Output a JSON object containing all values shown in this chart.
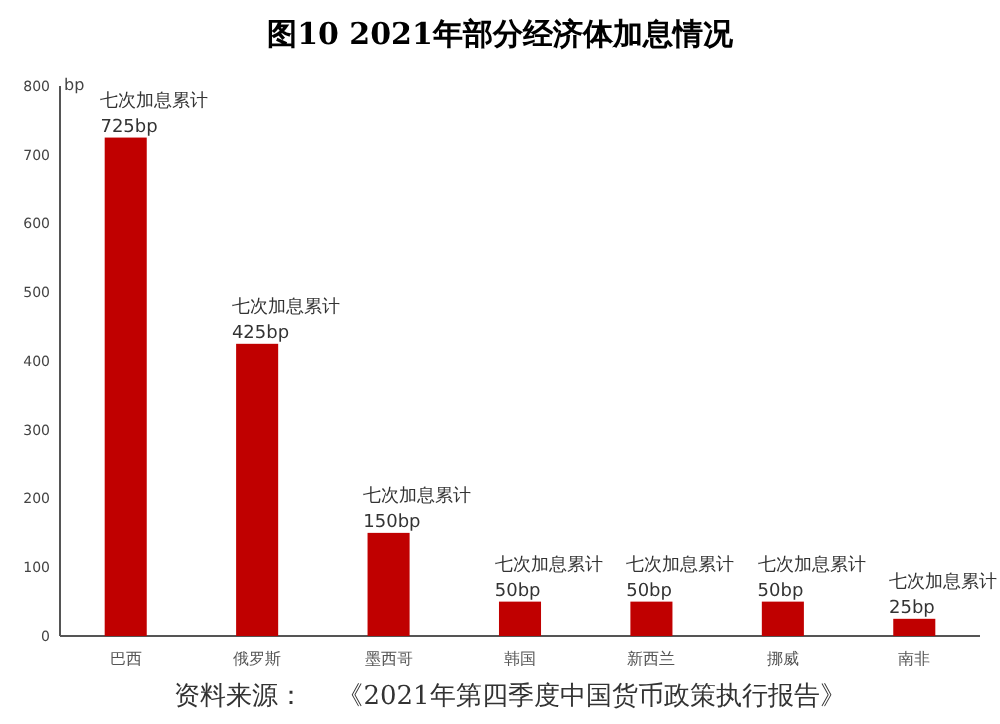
{
  "chart_data": {
    "type": "bar",
    "title": "图10  2021年部分经济体加息情况",
    "ylabel": "bp",
    "categories": [
      "巴西",
      "俄罗斯",
      "墨西哥",
      "韩国",
      "新西兰",
      "挪威",
      "南非"
    ],
    "values": [
      725,
      425,
      150,
      50,
      50,
      50,
      25
    ],
    "color": "#c00000",
    "value_labels": [
      "725bp",
      "425bp",
      "150bp",
      "50bp",
      "50bp",
      "50bp",
      "25bp"
    ],
    "ylim": [
      0,
      800
    ],
    "yticks": [
      0,
      100,
      200,
      300,
      400,
      500,
      600,
      700,
      800
    ],
    "annotations": [
      {
        "text": "七次加息累计",
        "x": "巴西",
        "y": 725
      },
      {
        "text": "七次加息累计",
        "x": "俄罗斯",
        "y": 425
      },
      {
        "text": "七次加息累计",
        "x": "墨西哥",
        "y": 150
      },
      {
        "text": "七次加息累计",
        "x": "韩国",
        "y": 50
      },
      {
        "text": "七次加息累计",
        "x": "新西兰",
        "y": 50
      },
      {
        "text": "七次加息累计",
        "x": "挪威",
        "y": 50
      },
      {
        "text": "七次加息累计",
        "x": "南非",
        "y": 25
      },
      "资料来源：    《2021年第四季度中国货币政策执行报告》"
    ]
  }
}
